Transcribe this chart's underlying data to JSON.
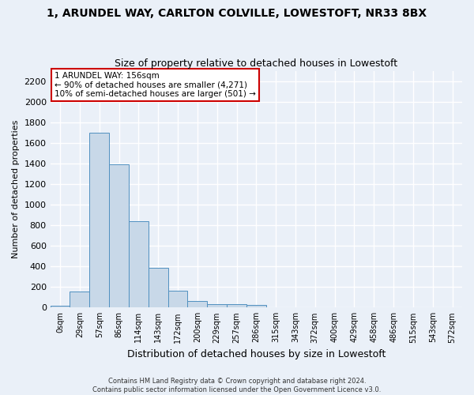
{
  "title": "1, ARUNDEL WAY, CARLTON COLVILLE, LOWESTOFT, NR33 8BX",
  "subtitle": "Size of property relative to detached houses in Lowestoft",
  "xlabel": "Distribution of detached houses by size in Lowestoft",
  "ylabel": "Number of detached properties",
  "footer_line1": "Contains HM Land Registry data © Crown copyright and database right 2024.",
  "footer_line2": "Contains public sector information licensed under the Open Government Licence v3.0.",
  "bar_labels": [
    "0sqm",
    "29sqm",
    "57sqm",
    "86sqm",
    "114sqm",
    "143sqm",
    "172sqm",
    "200sqm",
    "229sqm",
    "257sqm",
    "286sqm",
    "315sqm",
    "343sqm",
    "372sqm",
    "400sqm",
    "429sqm",
    "458sqm",
    "486sqm",
    "515sqm",
    "543sqm",
    "572sqm"
  ],
  "bar_values": [
    15,
    155,
    1700,
    1390,
    835,
    385,
    160,
    65,
    35,
    30,
    25,
    0,
    0,
    0,
    0,
    0,
    0,
    0,
    0,
    0,
    0
  ],
  "bar_color": "#c8d8e8",
  "bar_edgecolor": "#5090c0",
  "ylim": [
    0,
    2300
  ],
  "yticks": [
    0,
    200,
    400,
    600,
    800,
    1000,
    1200,
    1400,
    1600,
    1800,
    2000,
    2200
  ],
  "annotation_line1": "1 ARUNDEL WAY: 156sqm",
  "annotation_line2": "← 90% of detached houses are smaller (4,271)",
  "annotation_line3": "10% of semi-detached houses are larger (501) →",
  "annotation_box_color": "#ffffff",
  "annotation_box_edgecolor": "#cc0000",
  "bg_color": "#eaf0f8",
  "grid_color": "#ffffff",
  "title_fontsize": 10,
  "subtitle_fontsize": 9,
  "ylabel_fontsize": 8,
  "xlabel_fontsize": 9,
  "ytick_fontsize": 8,
  "xtick_fontsize": 7
}
